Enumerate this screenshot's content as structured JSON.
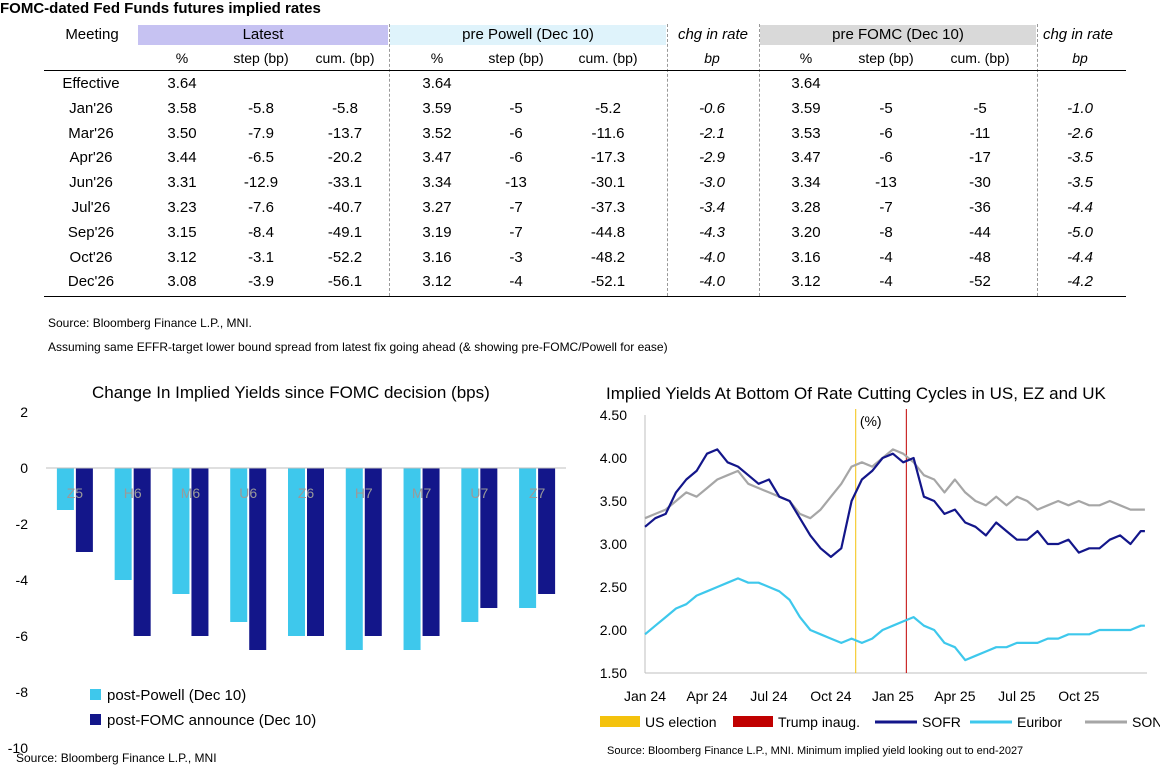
{
  "table": {
    "title": "FOMC-dated Fed Funds futures implied rates",
    "groups": {
      "meeting": "Meeting",
      "latest": "Latest",
      "pre_powell": "pre Powell (Dec 10)",
      "chg1": "chg in rate",
      "pre_fomc": "pre FOMC (Dec 10)",
      "chg2": "chg in rate"
    },
    "subheaders": [
      "%",
      "step (bp)",
      "cum. (bp)",
      "%",
      "step (bp)",
      "cum. (bp)",
      "bp",
      "%",
      "step (bp)",
      "cum. (bp)",
      "bp"
    ],
    "rows": [
      [
        "Effective",
        "3.64",
        "",
        "",
        "3.64",
        "",
        "",
        "",
        "3.64",
        "",
        "",
        ""
      ],
      [
        "Jan'26",
        "3.58",
        "-5.8",
        "-5.8",
        "3.59",
        "-5",
        "-5.2",
        "-0.6",
        "3.59",
        "-5",
        "-5",
        "-1.0"
      ],
      [
        "Mar'26",
        "3.50",
        "-7.9",
        "-13.7",
        "3.52",
        "-6",
        "-11.6",
        "-2.1",
        "3.53",
        "-6",
        "-11",
        "-2.6"
      ],
      [
        "Apr'26",
        "3.44",
        "-6.5",
        "-20.2",
        "3.47",
        "-6",
        "-17.3",
        "-2.9",
        "3.47",
        "-6",
        "-17",
        "-3.5"
      ],
      [
        "Jun'26",
        "3.31",
        "-12.9",
        "-33.1",
        "3.34",
        "-13",
        "-30.1",
        "-3.0",
        "3.34",
        "-13",
        "-30",
        "-3.5"
      ],
      [
        "Jul'26",
        "3.23",
        "-7.6",
        "-40.7",
        "3.27",
        "-7",
        "-37.3",
        "-3.4",
        "3.28",
        "-7",
        "-36",
        "-4.4"
      ],
      [
        "Sep'26",
        "3.15",
        "-8.4",
        "-49.1",
        "3.19",
        "-7",
        "-44.8",
        "-4.3",
        "3.20",
        "-8",
        "-44",
        "-5.0"
      ],
      [
        "Oct'26",
        "3.12",
        "-3.1",
        "-52.2",
        "3.16",
        "-3",
        "-48.2",
        "-4.0",
        "3.16",
        "-4",
        "-48",
        "-4.4"
      ],
      [
        "Dec'26",
        "3.08",
        "-3.9",
        "-56.1",
        "3.12",
        "-4",
        "-52.1",
        "-4.0",
        "3.12",
        "-4",
        "-52",
        "-4.2"
      ]
    ],
    "source": "Source: Bloomberg Finance L.P., MNI.",
    "note": "Assuming same  EFFR-target lower bound spread from latest fix going ahead (& showing pre-FOMC/Powell for ease)",
    "colors": {
      "latest": "#c6c2f2",
      "pre_powell": "#dff3fb",
      "pre_fomc": "#d9d9d9"
    }
  },
  "chart_data": [
    {
      "type": "bar",
      "title": "Change In Implied Yields since FOMC decision (bps)",
      "categories": [
        "Z5",
        "H6",
        "M6",
        "U6",
        "Z6",
        "H7",
        "M7",
        "U7",
        "Z7"
      ],
      "series": [
        {
          "name": "post-Powell (Dec 10)",
          "color": "#3ec8ec",
          "values": [
            -1.5,
            -4.0,
            -4.5,
            -5.5,
            -6.0,
            -6.5,
            -6.5,
            -5.5,
            -5.0
          ]
        },
        {
          "name": "post-FOMC announce (Dec 10)",
          "color": "#13168a",
          "values": [
            -3.0,
            -6.0,
            -6.0,
            -6.5,
            -6.0,
            -6.0,
            -6.0,
            -5.0,
            -4.5
          ]
        }
      ],
      "ylim": [
        -10,
        2
      ],
      "yticks": [
        "2",
        "0",
        "-2",
        "-4",
        "-6",
        "-8",
        "-10"
      ],
      "legend_position": "bottom-left",
      "source": "Source: Bloomberg Finance L.P., MNI"
    },
    {
      "type": "line",
      "title": "Implied Yields At Bottom Of Rate Cutting Cycles in US, EZ and UK",
      "ylabel": "(%)",
      "ylim": [
        1.5,
        4.5
      ],
      "yticks": [
        "4.50",
        "4.00",
        "3.50",
        "3.00",
        "2.50",
        "2.00",
        "1.50"
      ],
      "xticks": [
        "Jan 24",
        "Apr 24",
        "Jul 24",
        "Oct 24",
        "Jan 25",
        "Apr 25",
        "Jul 25",
        "Oct 25"
      ],
      "x_months": [
        0,
        3,
        6,
        9,
        12,
        15,
        18,
        21
      ],
      "x_range_months": [
        0,
        24.3
      ],
      "events": [
        {
          "name": "US election",
          "month": 10.2,
          "color": "#f4c20d"
        },
        {
          "name": "Trump inaug.",
          "month": 12.65,
          "color": "#c00000"
        }
      ],
      "series": [
        {
          "name": "SOFR",
          "color": "#13168a",
          "x": [
            0,
            0.5,
            1,
            1.5,
            2,
            2.5,
            3,
            3.5,
            4,
            4.5,
            5,
            5.5,
            6,
            6.5,
            7,
            7.5,
            8,
            8.5,
            9,
            9.5,
            10,
            10.5,
            11,
            11.5,
            12,
            12.5,
            13,
            13.5,
            14,
            14.5,
            15,
            15.5,
            16,
            16.5,
            17,
            17.5,
            18,
            18.5,
            19,
            19.5,
            20,
            20.5,
            21,
            21.5,
            22,
            22.5,
            23,
            23.5,
            24,
            24.2
          ],
          "values": [
            3.2,
            3.3,
            3.35,
            3.6,
            3.75,
            3.85,
            4.05,
            4.1,
            3.95,
            3.9,
            3.8,
            3.7,
            3.75,
            3.55,
            3.5,
            3.3,
            3.1,
            2.95,
            2.85,
            2.95,
            3.5,
            3.75,
            3.85,
            4.0,
            4.05,
            3.95,
            4.0,
            3.55,
            3.5,
            3.35,
            3.4,
            3.25,
            3.2,
            3.1,
            3.25,
            3.15,
            3.05,
            3.05,
            3.15,
            3.0,
            3.0,
            3.05,
            2.9,
            2.95,
            2.95,
            3.05,
            3.1,
            3.0,
            3.15,
            3.15
          ]
        },
        {
          "name": "Euribor",
          "color": "#3ec8ec",
          "x": [
            0,
            0.5,
            1,
            1.5,
            2,
            2.5,
            3,
            3.5,
            4,
            4.5,
            5,
            5.5,
            6,
            6.5,
            7,
            7.5,
            8,
            8.5,
            9,
            9.5,
            10,
            10.5,
            11,
            11.5,
            12,
            12.5,
            13,
            13.5,
            14,
            14.5,
            15,
            15.5,
            16,
            16.5,
            17,
            17.5,
            18,
            18.5,
            19,
            19.5,
            20,
            20.5,
            21,
            21.5,
            22,
            22.5,
            23,
            23.5,
            24,
            24.2
          ],
          "values": [
            1.95,
            2.05,
            2.15,
            2.25,
            2.3,
            2.4,
            2.45,
            2.5,
            2.55,
            2.6,
            2.55,
            2.55,
            2.5,
            2.45,
            2.35,
            2.15,
            2.0,
            1.95,
            1.9,
            1.85,
            1.9,
            1.85,
            1.9,
            2.0,
            2.05,
            2.1,
            2.15,
            2.05,
            2.0,
            1.85,
            1.8,
            1.65,
            1.7,
            1.75,
            1.8,
            1.8,
            1.85,
            1.85,
            1.85,
            1.9,
            1.9,
            1.95,
            1.95,
            1.95,
            2.0,
            2.0,
            2.0,
            2.0,
            2.05,
            2.05
          ]
        },
        {
          "name": "SONIA",
          "color": "#a6a6a6",
          "x": [
            0,
            0.5,
            1,
            1.5,
            2,
            2.5,
            3,
            3.5,
            4,
            4.5,
            5,
            5.5,
            6,
            6.5,
            7,
            7.5,
            8,
            8.5,
            9,
            9.5,
            10,
            10.5,
            11,
            11.5,
            12,
            12.5,
            13,
            13.5,
            14,
            14.5,
            15,
            15.5,
            16,
            16.5,
            17,
            17.5,
            18,
            18.5,
            19,
            19.5,
            20,
            20.5,
            21,
            21.5,
            22,
            22.5,
            23,
            23.5,
            24,
            24.2
          ],
          "values": [
            3.3,
            3.35,
            3.4,
            3.5,
            3.6,
            3.55,
            3.65,
            3.75,
            3.8,
            3.85,
            3.7,
            3.65,
            3.6,
            3.55,
            3.5,
            3.35,
            3.3,
            3.4,
            3.55,
            3.7,
            3.9,
            3.95,
            3.9,
            4.0,
            4.1,
            4.05,
            3.95,
            3.8,
            3.75,
            3.6,
            3.75,
            3.6,
            3.5,
            3.45,
            3.55,
            3.45,
            3.55,
            3.5,
            3.4,
            3.45,
            3.5,
            3.45,
            3.5,
            3.45,
            3.45,
            3.5,
            3.45,
            3.4,
            3.4,
            3.4
          ]
        }
      ],
      "legend_position": "bottom",
      "source": "Source: Bloomberg Finance L.P., MNI. Minimum implied yield looking out to end-2027"
    }
  ]
}
